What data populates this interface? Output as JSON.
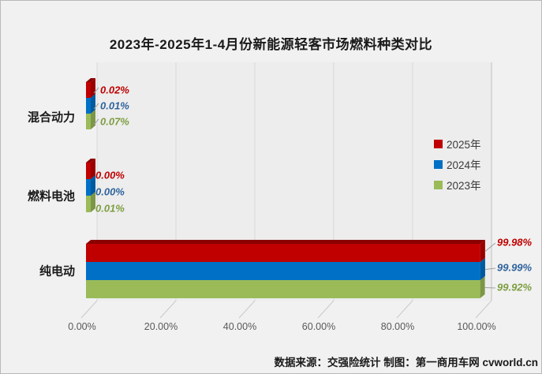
{
  "chart_data": {
    "type": "bar",
    "orientation": "horizontal",
    "style": "3d",
    "title": "2023年-2025年1-4月份新能源轻客市场燃料种类对比",
    "categories": [
      "混合动力",
      "燃料电池",
      "纯电动"
    ],
    "series": [
      {
        "name": "2025年",
        "color": "#C00000",
        "label_color": "#C00000",
        "values": [
          0.02,
          0.0,
          99.98
        ],
        "labels": [
          "0.02%",
          "0.00%",
          "99.98%"
        ]
      },
      {
        "name": "2024年",
        "color": "#0070C6",
        "label_color": "#2F639C",
        "values": [
          0.01,
          0.0,
          99.99
        ],
        "labels": [
          "0.01%",
          "0.00%",
          "99.99%"
        ]
      },
      {
        "name": "2023年",
        "color": "#9BBB59",
        "label_color": "#7E9E41",
        "values": [
          0.07,
          0.01,
          99.92
        ],
        "labels": [
          "0.07%",
          "0.01%",
          "99.92%"
        ]
      }
    ],
    "x_ticks": [
      "0.00%",
      "20.00%",
      "40.00%",
      "60.00%",
      "80.00%",
      "100.00%"
    ],
    "xlim": [
      0,
      100
    ],
    "xlabel": "",
    "ylabel": "",
    "grid": true,
    "legend_position": "middle-right"
  },
  "colors": {
    "background": "#F1F1F1",
    "wall": "#EDEDED",
    "gridline": "#D9D9D9",
    "wall_edge": "#C9C9C9",
    "leader_line": "#A0A0A0",
    "axis_text": "#595959"
  },
  "footer": {
    "text": "数据来源：交强险统计 制图：第一商用车网 cvworld.cn"
  }
}
